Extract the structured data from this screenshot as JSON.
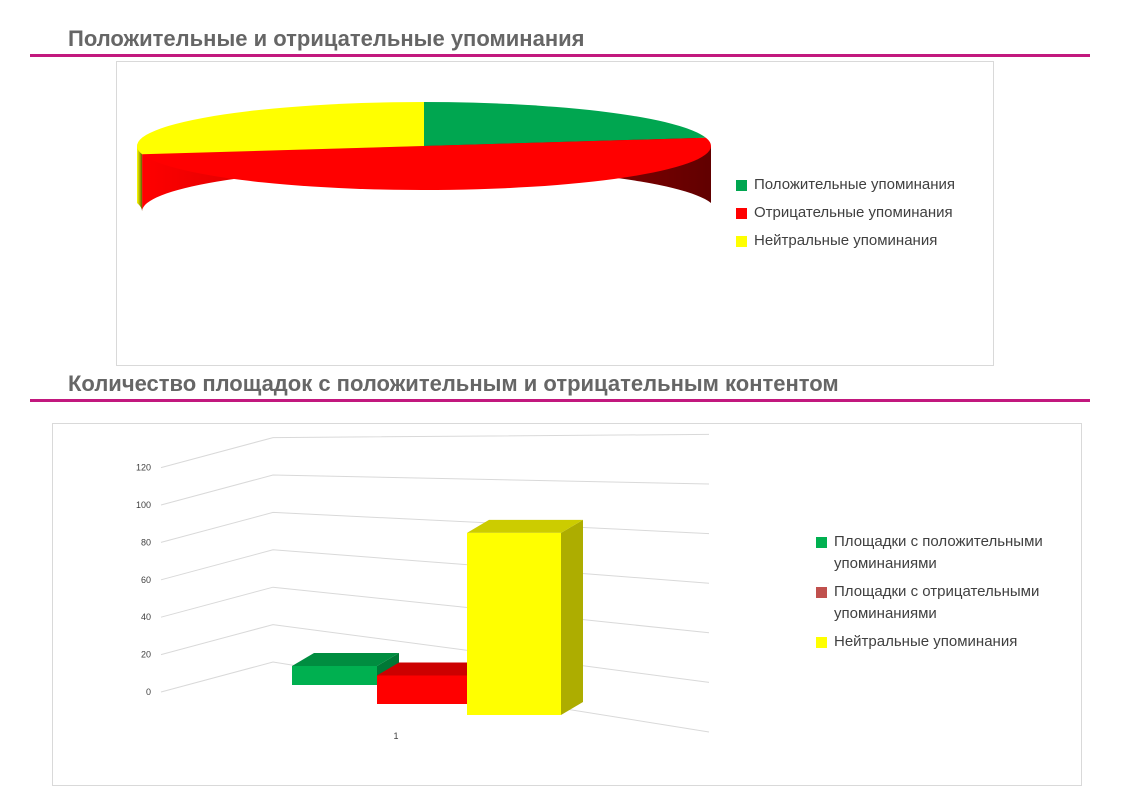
{
  "sections": [
    {
      "title": "Положительные и отрицательные упоминания"
    },
    {
      "title": "Количество площадок с положительным и отрицательным контентом"
    }
  ],
  "colors": {
    "rule": "#c2187e",
    "positive": "#00a650",
    "negative": "#ff0000",
    "neutral": "#ffff00",
    "sites_negative_legend": "#c0504d"
  },
  "chart_data": [
    {
      "type": "pie",
      "style": "3d",
      "title": "",
      "series": [
        {
          "name": "Положительные упоминания",
          "value": 22,
          "color": "#00a650"
        },
        {
          "name": "Отрицательные упоминания",
          "value": 50,
          "color": "#ff0000"
        },
        {
          "name": "Нейтральные упоминания",
          "value": 28,
          "color": "#ffff00"
        }
      ],
      "legend_position": "right"
    },
    {
      "type": "bar",
      "style": "3d",
      "title": "",
      "categories": [
        "1"
      ],
      "series": [
        {
          "name": "Площадки с положительными упоминаниями",
          "values": [
            12
          ],
          "color": "#00b050"
        },
        {
          "name": "Площадки с отрицательными упоминаниями",
          "values": [
            18
          ],
          "color": "#ff0000",
          "legend_color": "#c0504d"
        },
        {
          "name": "Нейтральные упоминания",
          "values": [
            115
          ],
          "color": "#ffff00"
        }
      ],
      "y_ticks": [
        "0",
        "20",
        "40",
        "60",
        "80",
        "100",
        "120"
      ],
      "ylim": [
        0,
        120
      ],
      "grid": true,
      "legend_position": "right"
    }
  ]
}
